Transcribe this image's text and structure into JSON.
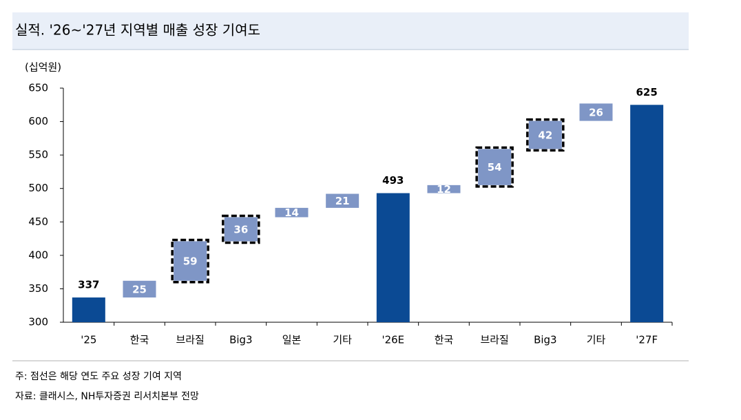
{
  "header": {
    "title": "실적. '26~'27년 지역별 매출 성장 기여도"
  },
  "chart_data": {
    "type": "waterfall",
    "unit_label": "(십억원)",
    "categories": [
      "'25",
      "한국",
      "브라질",
      "Big3",
      "일본",
      "기타",
      "'26E",
      "한국",
      "브라질",
      "Big3",
      "기타",
      "'27F"
    ],
    "values": [
      337,
      25,
      59,
      36,
      14,
      21,
      493,
      12,
      54,
      42,
      26,
      625
    ],
    "measure": [
      "total",
      "relative",
      "relative",
      "relative",
      "relative",
      "relative",
      "total",
      "relative",
      "relative",
      "relative",
      "relative",
      "total"
    ],
    "highlight": [
      false,
      false,
      true,
      true,
      false,
      false,
      false,
      false,
      true,
      true,
      false,
      false
    ],
    "total_color": "#0b4a94",
    "increment_color": "#7f96c6",
    "ylim": [
      300,
      650
    ],
    "yticks": [
      300,
      350,
      400,
      450,
      500,
      550,
      600,
      650
    ]
  },
  "footer": {
    "note": "주: 점선은 해당 연도 주요 성장 기여 지역",
    "source": "자료: 클래시스, NH투자증권 리서치본부 전망"
  }
}
